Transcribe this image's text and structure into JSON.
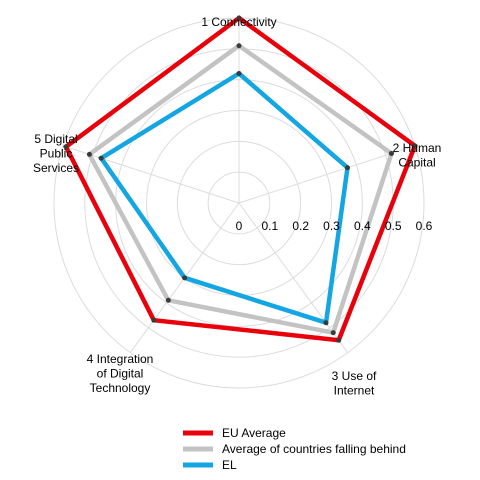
{
  "chart_data": {
    "type": "radar",
    "title": "",
    "axes": [
      [
        "1 Connectivity"
      ],
      [
        "2 Human",
        "Capital"
      ],
      [
        "3 Use of",
        "Internet"
      ],
      [
        "4 Integration",
        "of Digital",
        "Technology"
      ],
      [
        "5 Digital",
        "Public",
        "Services"
      ]
    ],
    "rlim": [
      0,
      0.6
    ],
    "ticks": [
      "0",
      "0.1",
      "0.2",
      "0.3",
      "0.4",
      "0.5",
      "0.6"
    ],
    "tick_values": [
      0,
      0.1,
      0.2,
      0.3,
      0.4,
      0.5,
      0.6
    ],
    "grid": true,
    "legend_position": "bottom",
    "series": [
      {
        "name": "EU Average",
        "color": "#e8000b",
        "values": [
          0.6,
          0.6,
          0.55,
          0.47,
          0.59
        ]
      },
      {
        "name": "Average of countries falling behind",
        "color": "#c3c3c3",
        "values": [
          0.51,
          0.52,
          0.52,
          0.39,
          0.51
        ]
      },
      {
        "name": "EL",
        "color": "#14a5e3",
        "values": [
          0.42,
          0.37,
          0.48,
          0.3,
          0.47
        ]
      }
    ]
  }
}
